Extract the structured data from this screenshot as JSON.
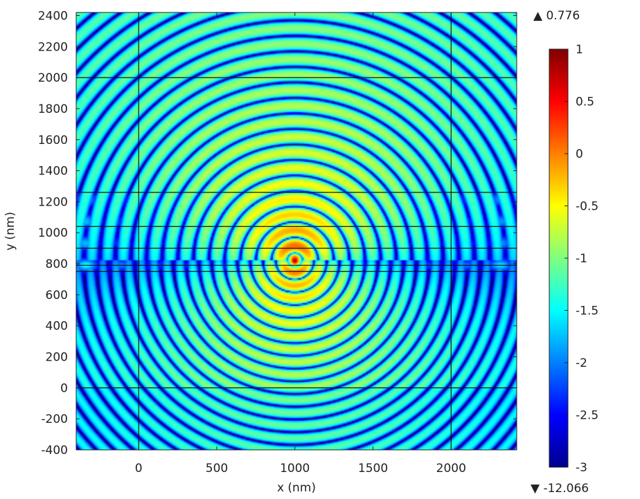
{
  "chart_data": {
    "type": "heatmap",
    "title": "",
    "xlabel": "x (nm)",
    "ylabel": "y (nm)",
    "xlim": [
      -400,
      2420
    ],
    "ylim": [
      -400,
      2420
    ],
    "x_ticks": [
      {
        "value": 0,
        "label": "0"
      },
      {
        "value": 500,
        "label": "500"
      },
      {
        "value": 1000,
        "label": "1000"
      },
      {
        "value": 1500,
        "label": "1500"
      },
      {
        "value": 2000,
        "label": "2000"
      }
    ],
    "y_ticks": [
      {
        "value": 2400,
        "label": "2400"
      },
      {
        "value": 2200,
        "label": "2200"
      },
      {
        "value": 2000,
        "label": "2000"
      },
      {
        "value": 1800,
        "label": "1800"
      },
      {
        "value": 1600,
        "label": "1600"
      },
      {
        "value": 1400,
        "label": "1400"
      },
      {
        "value": 1200,
        "label": "1200"
      },
      {
        "value": 1000,
        "label": "1000"
      },
      {
        "value": 800,
        "label": "800"
      },
      {
        "value": 600,
        "label": "600"
      },
      {
        "value": 400,
        "label": "400"
      },
      {
        "value": 200,
        "label": "200"
      },
      {
        "value": 0,
        "label": "0"
      },
      {
        "value": -200,
        "label": "-200"
      },
      {
        "value": -400,
        "label": "-400"
      }
    ],
    "source_point": {
      "x": 1000,
      "y": 820
    },
    "layer_interfaces_y": [
      0,
      750,
      790,
      900,
      1040,
      1260,
      2000
    ],
    "grid_vertical_x": [
      0,
      2000
    ],
    "colorbar": {
      "colormap": "jet",
      "min": -3,
      "max": 1,
      "ticks": [
        {
          "value": 1,
          "label": "1"
        },
        {
          "value": 0.5,
          "label": "0.5"
        },
        {
          "value": 0,
          "label": "0"
        },
        {
          "value": -0.5,
          "label": "-0.5"
        },
        {
          "value": -1,
          "label": "-1"
        },
        {
          "value": -1.5,
          "label": "-1.5"
        },
        {
          "value": -2,
          "label": "-2"
        },
        {
          "value": -2.5,
          "label": "-2.5"
        },
        {
          "value": -3,
          "label": "-3"
        }
      ],
      "max_marker_label": "▲ 0.776",
      "min_marker_label": "▼ -12.066"
    }
  }
}
